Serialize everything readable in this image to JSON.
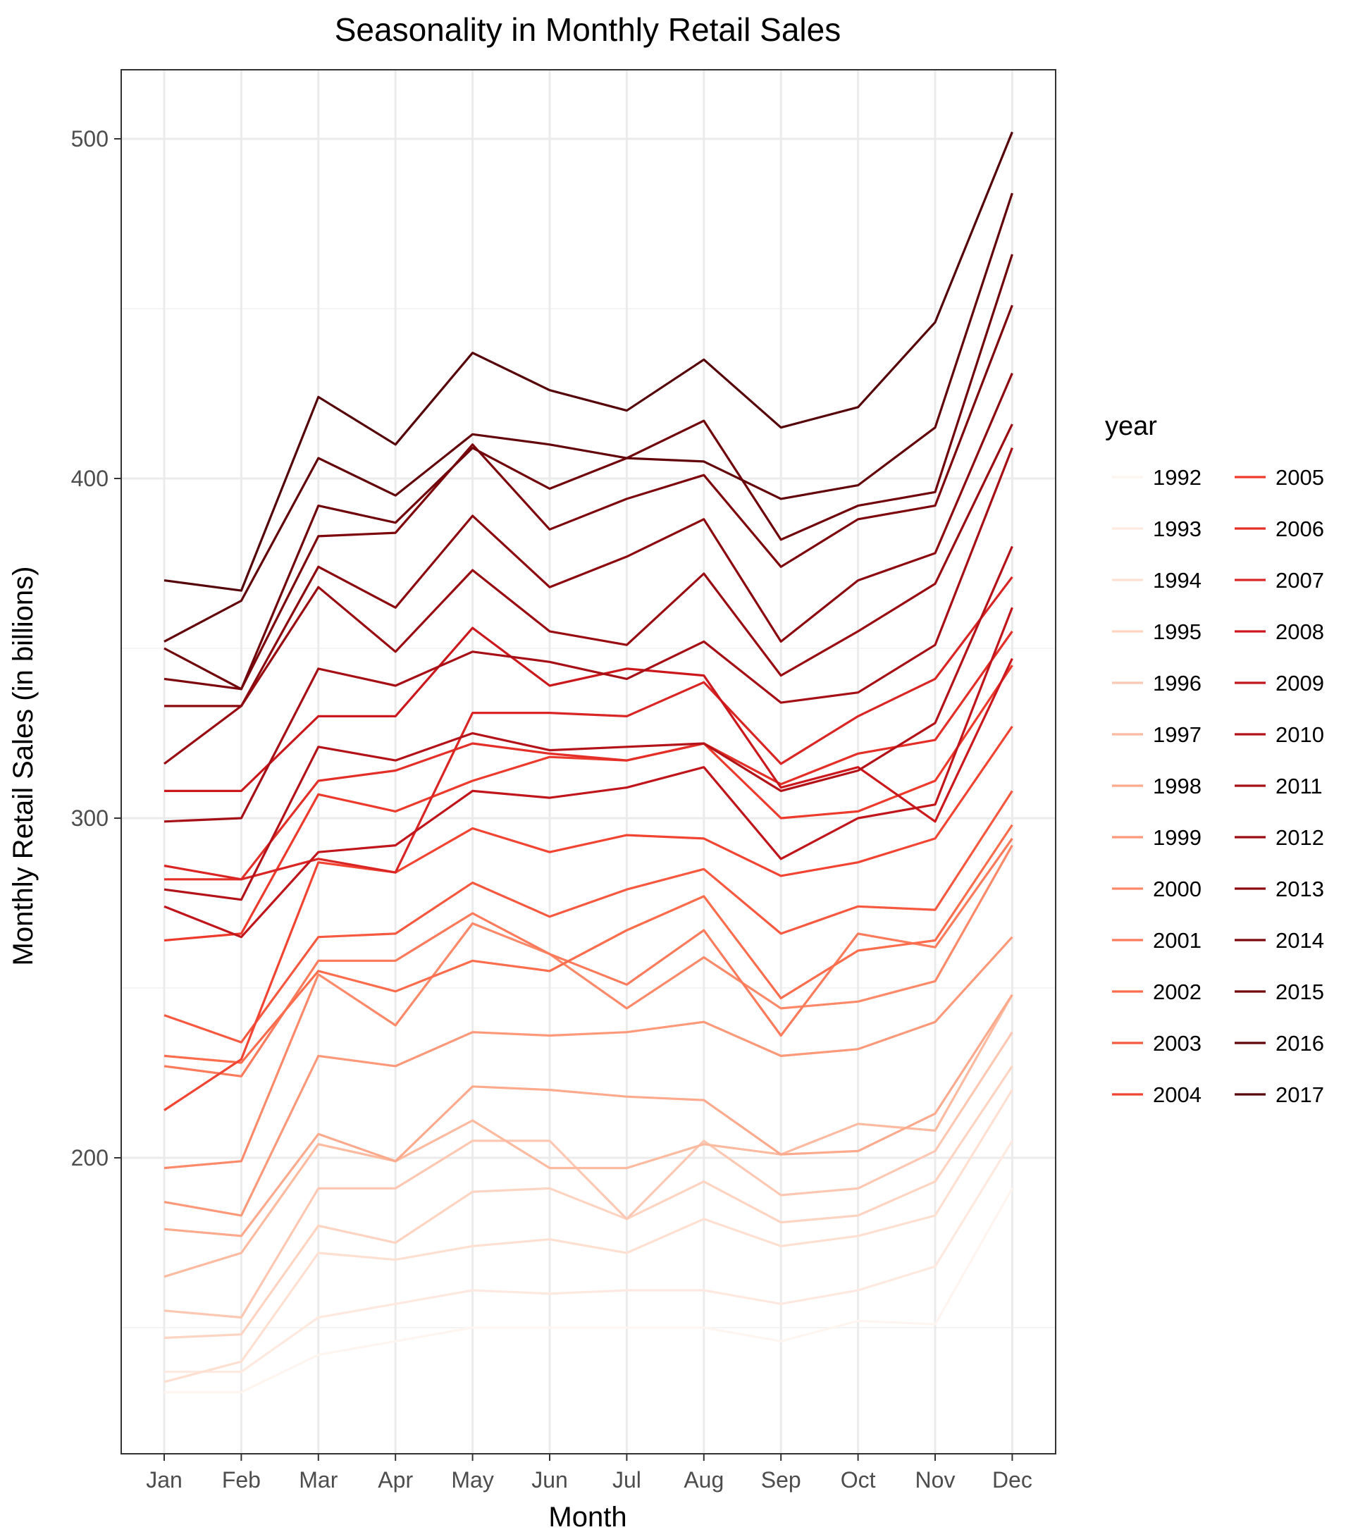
{
  "chart_data": {
    "type": "line",
    "title": "Seasonality in Monthly Retail Sales",
    "xlabel": "Month",
    "ylabel": "Monthly Retail Sales (in billions)",
    "categories": [
      "Jan",
      "Feb",
      "Mar",
      "Apr",
      "May",
      "Jun",
      "Jul",
      "Aug",
      "Sep",
      "Oct",
      "Nov",
      "Dec"
    ],
    "ylim": [
      114,
      520
    ],
    "yticks": [
      200,
      300,
      400
    ],
    "grid": true,
    "legend": {
      "title": "year",
      "placement": "right"
    },
    "series": [
      {
        "name": "1992",
        "color": "#fff5f0",
        "values": [
          131,
          131,
          142,
          146,
          150,
          150,
          150,
          150,
          146,
          152,
          151,
          191
        ]
      },
      {
        "name": "1993",
        "color": "#fee9e0",
        "values": [
          137,
          137,
          153,
          157,
          161,
          160,
          161,
          161,
          157,
          161,
          168,
          205
        ]
      },
      {
        "name": "1994",
        "color": "#fee0d2",
        "values": [
          134,
          140,
          172,
          170,
          174,
          176,
          172,
          182,
          174,
          177,
          183,
          220
        ]
      },
      {
        "name": "1995",
        "color": "#fdd4c2",
        "values": [
          147,
          148,
          180,
          175,
          190,
          191,
          182,
          193,
          181,
          183,
          193,
          227
        ]
      },
      {
        "name": "1996",
        "color": "#fcc8b3",
        "values": [
          155,
          153,
          191,
          191,
          205,
          205,
          182,
          205,
          189,
          191,
          202,
          237
        ]
      },
      {
        "name": "1997",
        "color": "#fcbba1",
        "values": [
          165,
          172,
          204,
          199,
          211,
          197,
          197,
          204,
          201,
          210,
          208,
          248
        ]
      },
      {
        "name": "1998",
        "color": "#fcaa8d",
        "values": [
          179,
          177,
          207,
          199,
          221,
          220,
          218,
          217,
          201,
          202,
          213,
          248
        ]
      },
      {
        "name": "1999",
        "color": "#fc997a",
        "values": [
          187,
          183,
          230,
          227,
          237,
          236,
          237,
          240,
          230,
          232,
          240,
          265
        ]
      },
      {
        "name": "2000",
        "color": "#fc8a6a",
        "values": [
          197,
          199,
          254,
          239,
          269,
          260,
          244,
          259,
          244,
          246,
          252,
          292
        ]
      },
      {
        "name": "2001",
        "color": "#fb7b5c",
        "values": [
          227,
          224,
          258,
          258,
          272,
          260,
          251,
          267,
          236,
          266,
          262,
          294
        ]
      },
      {
        "name": "2002",
        "color": "#fb6d4d",
        "values": [
          230,
          228,
          255,
          249,
          258,
          255,
          267,
          277,
          247,
          261,
          264,
          298
        ]
      },
      {
        "name": "2003",
        "color": "#f6593f",
        "values": [
          242,
          234,
          265,
          266,
          281,
          271,
          279,
          285,
          266,
          274,
          273,
          308
        ]
      },
      {
        "name": "2004",
        "color": "#f14432",
        "values": [
          214,
          229,
          287,
          284,
          297,
          290,
          295,
          294,
          283,
          287,
          294,
          327
        ]
      },
      {
        "name": "2005",
        "color": "#ec3a2d",
        "values": [
          264,
          266,
          307,
          302,
          311,
          318,
          317,
          322,
          300,
          302,
          311,
          345
        ]
      },
      {
        "name": "2006",
        "color": "#e32f27",
        "values": [
          282,
          282,
          311,
          314,
          322,
          319,
          317,
          322,
          310,
          319,
          323,
          355
        ]
      },
      {
        "name": "2007",
        "color": "#d92524",
        "values": [
          286,
          282,
          288,
          284,
          331,
          331,
          330,
          340,
          316,
          330,
          341,
          371
        ]
      },
      {
        "name": "2008",
        "color": "#cb181d",
        "values": [
          308,
          308,
          330,
          330,
          356,
          339,
          344,
          342,
          309,
          315,
          299,
          347
        ]
      },
      {
        "name": "2009",
        "color": "#bf151b",
        "values": [
          274,
          265,
          290,
          292,
          308,
          306,
          309,
          315,
          288,
          300,
          304,
          362
        ]
      },
      {
        "name": "2010",
        "color": "#b31218",
        "values": [
          279,
          276,
          321,
          317,
          325,
          320,
          321,
          322,
          308,
          314,
          328,
          380
        ]
      },
      {
        "name": "2011",
        "color": "#a50f15",
        "values": [
          299,
          300,
          344,
          339,
          349,
          346,
          341,
          352,
          334,
          337,
          351,
          409
        ]
      },
      {
        "name": "2012",
        "color": "#990c12",
        "values": [
          316,
          333,
          368,
          349,
          373,
          355,
          351,
          372,
          342,
          355,
          369,
          416
        ]
      },
      {
        "name": "2013",
        "color": "#8b090f",
        "values": [
          333,
          333,
          374,
          362,
          389,
          368,
          377,
          388,
          352,
          370,
          378,
          431
        ]
      },
      {
        "name": "2014",
        "color": "#7d060d",
        "values": [
          341,
          338,
          383,
          384,
          410,
          385,
          394,
          401,
          374,
          388,
          392,
          451
        ]
      },
      {
        "name": "2015",
        "color": "#70040b",
        "values": [
          350,
          338,
          392,
          387,
          409,
          397,
          406,
          417,
          382,
          392,
          396,
          466
        ]
      },
      {
        "name": "2016",
        "color": "#620209",
        "values": [
          352,
          364,
          406,
          395,
          413,
          410,
          406,
          405,
          394,
          398,
          415,
          484
        ]
      },
      {
        "name": "2017",
        "color": "#540108",
        "values": [
          370,
          367,
          424,
          410,
          437,
          426,
          420,
          435,
          415,
          421,
          446,
          502
        ]
      }
    ]
  }
}
